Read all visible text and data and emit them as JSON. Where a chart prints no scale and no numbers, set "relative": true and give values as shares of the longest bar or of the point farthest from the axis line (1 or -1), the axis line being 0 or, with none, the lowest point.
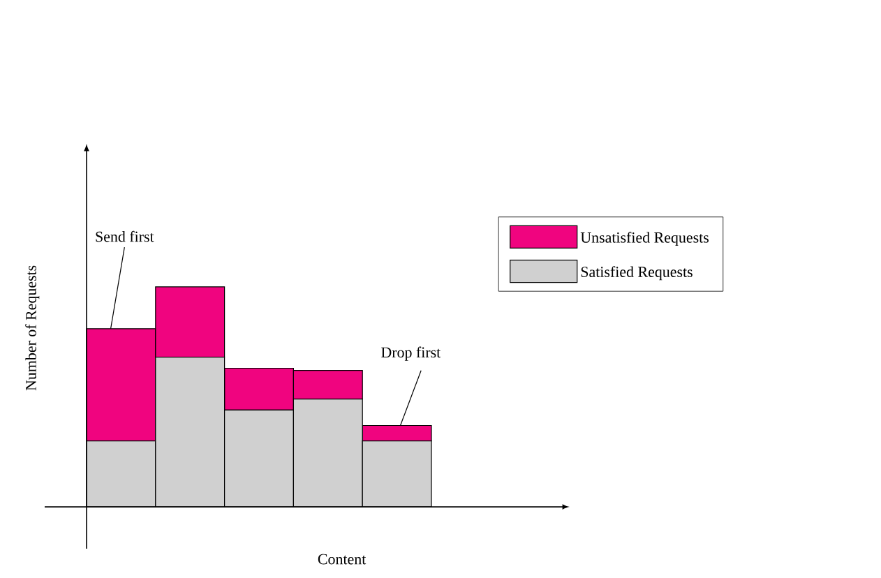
{
  "chart_data": {
    "type": "bar",
    "stacked": true,
    "relative": true,
    "xlabel": "Content",
    "ylabel": "Number of Requests",
    "categories": [
      null,
      null,
      null,
      null,
      null
    ],
    "series": [
      {
        "name": "Satisfied Requests",
        "color": "#d0d0d0",
        "values": [
          0.3,
          0.68,
          0.44,
          0.49,
          0.3
        ]
      },
      {
        "name": "Unsatisfied Requests",
        "color": "#f0047f",
        "values": [
          0.51,
          0.32,
          0.19,
          0.13,
          0.07
        ]
      }
    ],
    "annotations": [
      "Send first",
      "Drop first"
    ],
    "legend": "right"
  }
}
